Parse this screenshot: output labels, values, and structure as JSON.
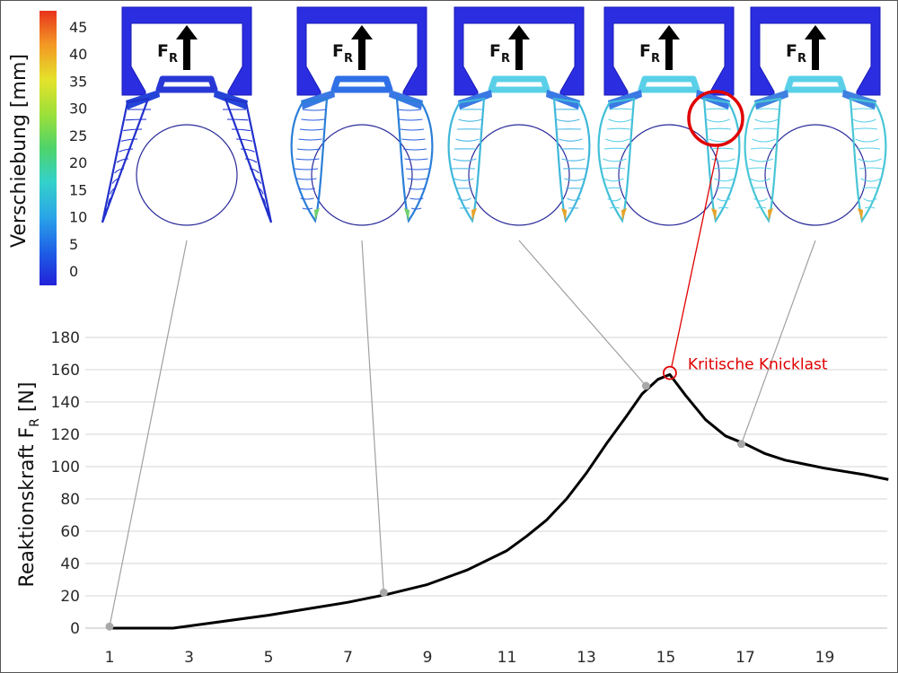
{
  "chart_data": {
    "type": "line",
    "ylabel": "Reaktionskraft F",
    "ylabel_subscript": "R",
    "ylabel_unit": " [N]",
    "xlim": [
      0.75,
      20.9
    ],
    "ylim": [
      0,
      180
    ],
    "x_ticks": [
      1,
      3,
      5,
      7,
      9,
      11,
      13,
      15,
      17,
      19
    ],
    "y_ticks": [
      0,
      20,
      40,
      60,
      80,
      100,
      120,
      140,
      160,
      180
    ],
    "grid": true,
    "series": [
      {
        "color": "#000000",
        "points": [
          [
            1,
            0
          ],
          [
            2.6,
            0
          ],
          [
            3.5,
            3
          ],
          [
            5,
            8
          ],
          [
            6,
            12
          ],
          [
            7,
            16
          ],
          [
            8,
            21
          ],
          [
            9,
            27
          ],
          [
            10,
            36
          ],
          [
            11,
            48
          ],
          [
            11.5,
            57
          ],
          [
            12,
            67
          ],
          [
            12.5,
            80
          ],
          [
            13,
            96
          ],
          [
            13.5,
            114
          ],
          [
            14,
            131
          ],
          [
            14.4,
            145
          ],
          [
            14.8,
            154
          ],
          [
            15.1,
            157
          ],
          [
            15.5,
            144
          ],
          [
            16,
            129
          ],
          [
            16.5,
            119
          ],
          [
            17,
            114
          ],
          [
            17.5,
            108
          ],
          [
            18,
            104
          ],
          [
            19,
            99
          ],
          [
            20,
            95
          ],
          [
            20.6,
            92
          ]
        ]
      }
    ],
    "markers": [
      {
        "x": 1,
        "y": 1
      },
      {
        "x": 7.9,
        "y": 22
      },
      {
        "x": 14.5,
        "y": 150
      },
      {
        "x": 16.9,
        "y": 114
      }
    ],
    "critical_point": {
      "x": 15.1,
      "y": 158
    },
    "annotations": [
      {
        "text": "Kritische Knicklast",
        "color": "#e00000"
      }
    ],
    "colorbar": {
      "label": "Verschiebung [mm]",
      "ticks": [
        0,
        5,
        10,
        15,
        20,
        25,
        30,
        35,
        40,
        45
      ]
    },
    "force_label": "F",
    "force_label_subscript": "R",
    "snapshots": 5
  }
}
